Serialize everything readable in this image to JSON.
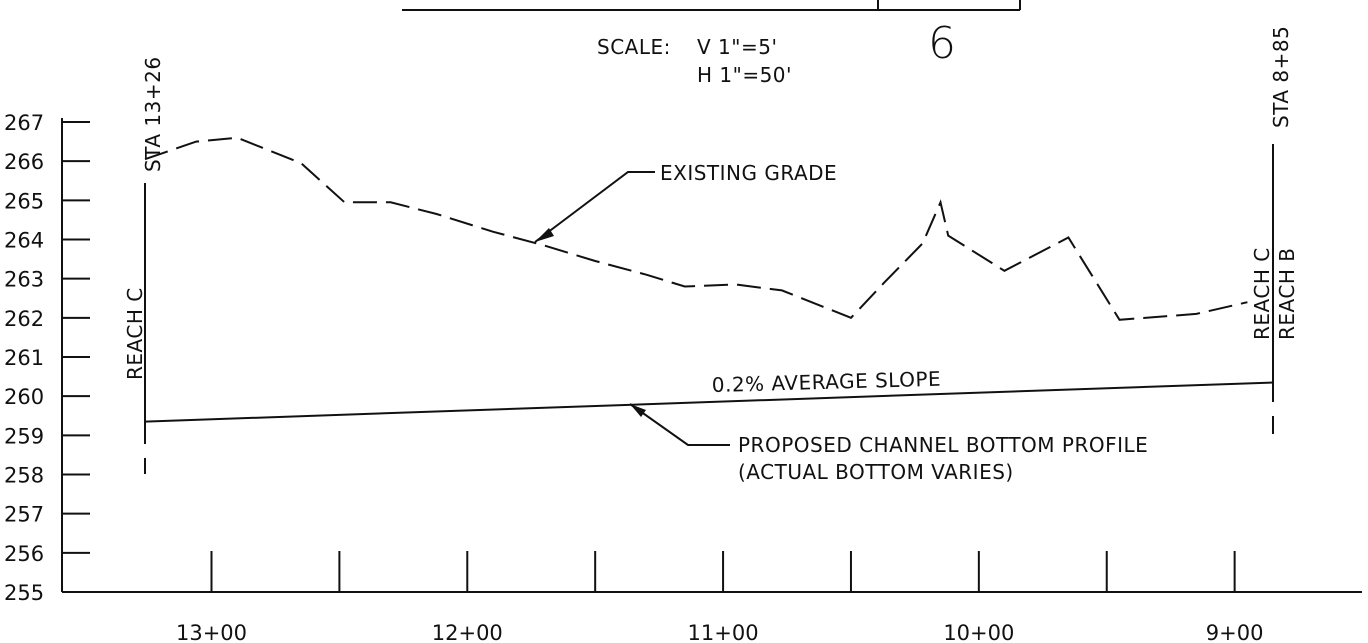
{
  "title_block": {
    "scale_label": "SCALE:",
    "scale_v": "V 1\"=5'",
    "scale_h": "H 1\"=50'",
    "sheet_number": "6"
  },
  "station_labels": {
    "left": "STA 13+26",
    "right": "STA 8+85"
  },
  "reach_labels": {
    "left": "REACH C",
    "right_upper": "REACH C",
    "right_lower": "REACH B"
  },
  "annotations": {
    "existing_grade": "EXISTING GRADE",
    "slope": "0.2% AVERAGE SLOPE",
    "proposed_line1": "PROPOSED CHANNEL BOTTOM PROFILE",
    "proposed_line2": "(ACTUAL BOTTOM VARIES)"
  },
  "chart_data": {
    "type": "line",
    "title": "",
    "xlabel": "",
    "ylabel": "",
    "x_reversed": true,
    "xlim": [
      1326,
      885
    ],
    "ylim": [
      255,
      267
    ],
    "x_ticks": [
      {
        "station": 1300,
        "label": "13+00"
      },
      {
        "station": 1200,
        "label": "12+00"
      },
      {
        "station": 1100,
        "label": "11+00"
      },
      {
        "station": 1000,
        "label": "10+00"
      },
      {
        "station": 900,
        "label": "9+00"
      }
    ],
    "x_minor_ticks": [
      1250,
      1150,
      1050,
      950
    ],
    "y_ticks": [
      "255",
      "256",
      "257",
      "258",
      "259",
      "260",
      "261",
      "262",
      "263",
      "264",
      "265",
      "266",
      "267"
    ],
    "series": [
      {
        "style": "dashed",
        "x": [
          1326,
          1306,
          1290,
          1265,
          1248,
          1230,
          1212,
          1190,
          1170,
          1150,
          1130,
          1115,
          1095,
          1077,
          1050,
          1037,
          1022,
          1015,
          1012,
          990,
          965,
          945,
          915,
          895
        ],
        "y": [
          266.05,
          266.5,
          266.6,
          265.95,
          264.95,
          264.95,
          264.65,
          264.2,
          263.85,
          263.45,
          263.1,
          262.8,
          262.85,
          262.7,
          262.0,
          262.9,
          263.9,
          264.95,
          264.1,
          263.2,
          264.05,
          261.95,
          262.1,
          262.4
        ]
      },
      {
        "style": "solid",
        "x": [
          1326,
          885
        ],
        "y": [
          259.35,
          260.35
        ]
      }
    ]
  }
}
